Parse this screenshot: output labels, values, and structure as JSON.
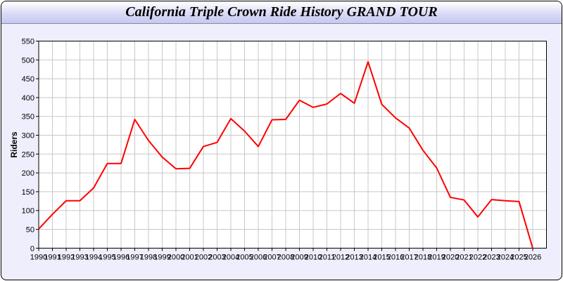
{
  "chart_data": {
    "type": "line",
    "title": "California Triple Crown Ride History GRAND TOUR",
    "xlabel": "",
    "ylabel": "Riders",
    "xlim": [
      1990,
      2027
    ],
    "ylim": [
      0,
      550
    ],
    "grid": true,
    "yticks": [
      0,
      50,
      100,
      150,
      200,
      250,
      300,
      350,
      400,
      450,
      500,
      550
    ],
    "x": [
      1990,
      1991,
      1992,
      1993,
      1994,
      1995,
      1996,
      1997,
      1998,
      1999,
      2000,
      2001,
      2002,
      2003,
      2004,
      2005,
      2006,
      2007,
      2008,
      2009,
      2010,
      2011,
      2012,
      2013,
      2014,
      2015,
      2016,
      2017,
      2018,
      2019,
      2020,
      2021,
      2022,
      2023,
      2024,
      2025,
      2026
    ],
    "series": [
      {
        "values": [
          51,
          90,
          126,
          126,
          160,
          225,
          225,
          342,
          286,
          242,
          211,
          212,
          270,
          281,
          344,
          311,
          270,
          341,
          342,
          393,
          374,
          383,
          411,
          385,
          495,
          382,
          346,
          319,
          260,
          213,
          135,
          128,
          83,
          129,
          126,
          124,
          0
        ],
        "color": "#ff0000"
      }
    ]
  }
}
